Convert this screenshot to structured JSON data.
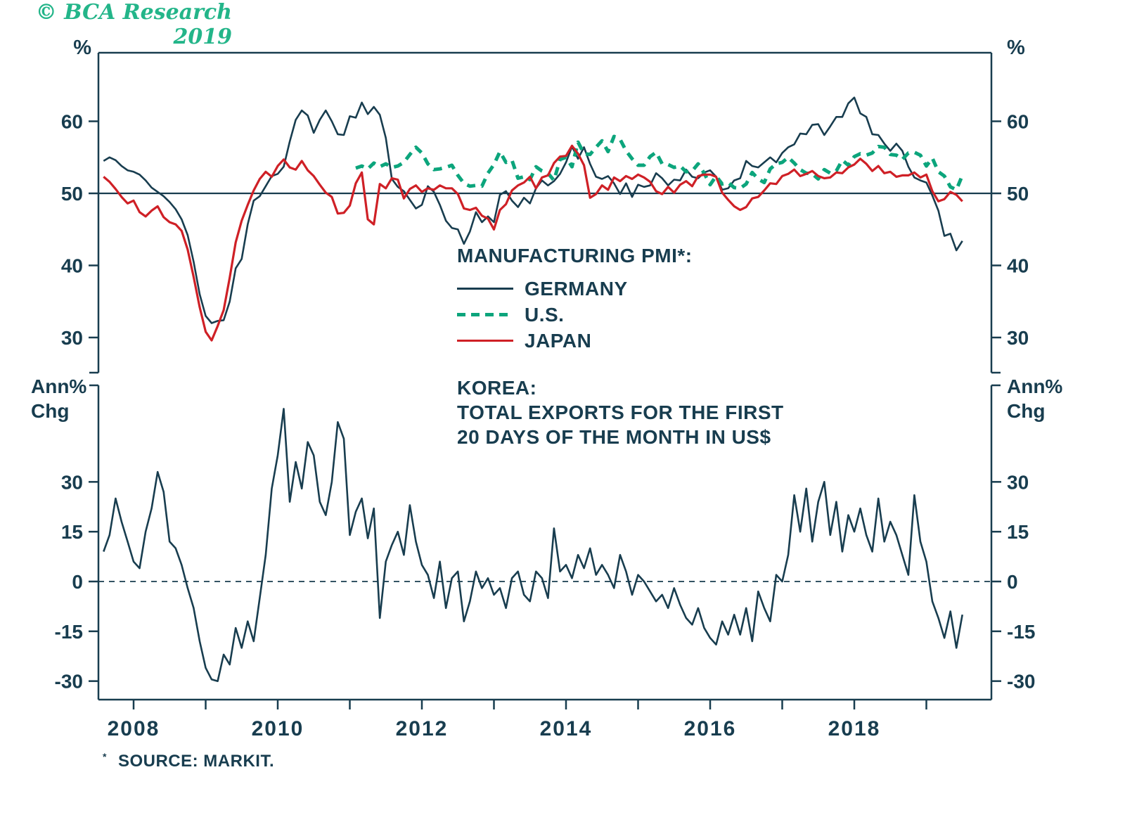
{
  "colors": {
    "axis": "#183d4f",
    "germany": "#183d4f",
    "us": "#0ca57c",
    "japan": "#cf2026",
    "korea": "#183d4f",
    "copyright_green": "#23b589"
  },
  "annotations": {
    "pct": "%",
    "ann_line1": "Ann%",
    "ann_line2": "Chg",
    "legend_title": "MANUFACTURING PMI*:",
    "legend_items": [
      "GERMANY",
      "U.S.",
      "JAPAN"
    ],
    "korea_label_lines": [
      "KOREA:",
      "TOTAL EXPORTS FOR THE FIRST",
      "20 DAYS OF THE MONTH IN US$"
    ],
    "footnote_mark": "*",
    "footnote": "SOURCE: MARKIT.",
    "copyright": "© BCA Research 2019"
  },
  "chart_data": [
    {
      "type": "line",
      "panel": "top",
      "title": "MANUFACTURING PMI*",
      "x_start": 2007.5833,
      "x_step": "monthly",
      "x_ticks": [
        2008,
        2009,
        2010,
        2011,
        2012,
        2013,
        2014,
        2015,
        2016,
        2017,
        2018,
        2019
      ],
      "x_tick_labels": [
        2008,
        2010,
        2012,
        2014,
        2016,
        2018
      ],
      "y_ticks": [
        60,
        50,
        40,
        30
      ],
      "ylim": [
        25,
        69
      ],
      "ref_line": 50,
      "y_axis_label": "%",
      "legend_position": "center",
      "series": [
        {
          "name": "GERMANY",
          "color": "#183d4f",
          "dash": false,
          "width": 2.6,
          "start_index": 0,
          "values": [
            54.5,
            55.0,
            54.6,
            53.8,
            53.2,
            53.0,
            52.6,
            51.8,
            50.8,
            50.2,
            49.6,
            48.8,
            47.8,
            46.4,
            44.2,
            40.5,
            36.0,
            33.0,
            32.0,
            32.3,
            32.4,
            35.0,
            39.6,
            40.9,
            45.7,
            49.0,
            49.6,
            51.0,
            52.4,
            52.7,
            53.7,
            57.2,
            60.2,
            61.5,
            60.8,
            58.4,
            60.2,
            61.5,
            60.0,
            58.2,
            58.1,
            60.7,
            60.5,
            62.6,
            61.0,
            62.0,
            60.9,
            57.7,
            52.0,
            50.9,
            50.3,
            49.1,
            47.9,
            48.4,
            51.0,
            50.2,
            48.4,
            46.2,
            45.2,
            45.0,
            43.0,
            44.7,
            47.4,
            46.0,
            46.8,
            46.0,
            49.8,
            50.3,
            49.0,
            48.1,
            49.4,
            48.6,
            50.7,
            51.8,
            51.1,
            51.7,
            52.7,
            54.3,
            56.5,
            54.8,
            56.4,
            54.1,
            52.3,
            52.0,
            52.4,
            51.4,
            49.9,
            51.4,
            49.5,
            51.2,
            50.9,
            51.1,
            52.8,
            52.1,
            51.1,
            51.9,
            51.8,
            53.3,
            52.3,
            52.1,
            52.9,
            53.2,
            52.3,
            50.5,
            50.7,
            51.8,
            52.1,
            54.5,
            53.8,
            53.6,
            54.3,
            55.0,
            54.3,
            55.6,
            56.4,
            56.8,
            58.3,
            58.2,
            59.5,
            59.6,
            58.1,
            59.3,
            60.6,
            60.6,
            62.5,
            63.3,
            61.1,
            60.6,
            58.2,
            58.1,
            56.9,
            55.9,
            56.9,
            55.9,
            53.7,
            52.2,
            51.8,
            51.5,
            49.7,
            47.6,
            44.1,
            44.4,
            42.1,
            43.4
          ]
        },
        {
          "name": "U.S.",
          "color": "#0ca57c",
          "dash": true,
          "width": 5,
          "start_index": 42,
          "values": [
            53.5,
            53.8,
            53.4,
            54.2,
            53.7,
            54.1,
            53.6,
            53.8,
            54.3,
            55.4,
            56.4,
            55.6,
            54.1,
            53.3,
            53.4,
            53.6,
            53.9,
            52.5,
            51.4,
            51.0,
            51.1,
            51.0,
            52.8,
            54.0,
            55.8,
            54.3,
            54.6,
            52.1,
            52.3,
            51.9,
            53.7,
            53.1,
            52.8,
            51.8,
            54.7,
            55.0,
            53.7,
            57.1,
            55.5,
            55.4,
            56.4,
            57.3,
            55.8,
            57.9,
            57.5,
            55.9,
            54.8,
            53.9,
            53.9,
            55.1,
            55.7,
            54.1,
            54.0,
            53.6,
            53.8,
            53.0,
            53.1,
            54.1,
            52.8,
            51.2,
            52.4,
            51.3,
            51.5,
            50.8,
            50.7,
            51.3,
            52.9,
            52.0,
            51.5,
            53.4,
            54.1,
            54.3,
            55.0,
            54.2,
            53.3,
            52.8,
            52.7,
            52.0,
            53.3,
            52.8,
            53.1,
            54.6,
            53.9,
            55.1,
            55.5,
            55.3,
            55.6,
            56.5,
            56.4,
            55.4,
            55.3,
            54.7,
            55.6,
            55.7,
            55.3,
            53.8,
            54.9,
            53.0,
            52.4,
            50.9,
            50.5,
            52.5
          ]
        },
        {
          "name": "JAPAN",
          "color": "#cf2026",
          "dash": false,
          "width": 3.2,
          "start_index": 0,
          "values": [
            52.3,
            51.6,
            50.6,
            49.5,
            48.6,
            49.0,
            47.4,
            46.8,
            47.6,
            48.2,
            46.7,
            46.0,
            45.7,
            44.8,
            42.2,
            38.4,
            34.2,
            30.8,
            29.6,
            31.6,
            33.8,
            38.3,
            43.2,
            46.2,
            48.4,
            50.4,
            52.0,
            53.0,
            52.3,
            53.8,
            54.7,
            53.6,
            53.3,
            54.5,
            53.2,
            52.4,
            51.2,
            50.1,
            49.5,
            47.2,
            47.3,
            48.3,
            51.4,
            52.9,
            46.4,
            45.7,
            51.3,
            50.7,
            52.1,
            51.9,
            49.3,
            50.6,
            51.1,
            50.2,
            50.7,
            50.5,
            51.1,
            50.7,
            50.7,
            49.9,
            47.9,
            47.7,
            48.0,
            46.9,
            46.5,
            45.0,
            47.7,
            48.5,
            50.4,
            51.1,
            51.5,
            52.3,
            50.7,
            52.2,
            52.5,
            54.2,
            55.1,
            55.2,
            56.6,
            55.5,
            53.9,
            49.4,
            49.9,
            51.1,
            50.5,
            52.2,
            51.7,
            52.4,
            52.0,
            52.6,
            52.2,
            51.6,
            50.3,
            49.9,
            50.9,
            50.1,
            51.2,
            51.7,
            51.0,
            52.4,
            52.6,
            52.6,
            52.3,
            50.1,
            49.1,
            48.2,
            47.7,
            48.1,
            49.3,
            49.5,
            50.4,
            51.4,
            51.3,
            52.4,
            52.7,
            53.3,
            52.4,
            52.7,
            53.1,
            52.4,
            52.1,
            52.2,
            52.9,
            52.8,
            53.6,
            54.0,
            54.8,
            54.1,
            53.1,
            53.8,
            52.8,
            53.0,
            52.3,
            52.5,
            52.5,
            52.9,
            52.2,
            52.6,
            50.3,
            48.9,
            49.2,
            50.2,
            49.8,
            48.9
          ]
        }
      ]
    },
    {
      "type": "line",
      "panel": "bottom",
      "title": "KOREA: TOTAL EXPORTS FOR THE FIRST 20 DAYS OF THE MONTH IN US$",
      "x_start": 2007.5833,
      "x_step": "monthly",
      "x_ticks": [
        2008,
        2009,
        2010,
        2011,
        2012,
        2013,
        2014,
        2015,
        2016,
        2017,
        2018,
        2019
      ],
      "x_tick_labels": [
        2008,
        2010,
        2012,
        2014,
        2016,
        2018
      ],
      "y_ticks": [
        30,
        15,
        0,
        -15,
        -30
      ],
      "ylim": [
        -36,
        59
      ],
      "ref_line": 0,
      "ref_line_style": "dashed",
      "y_axis_label": "Ann% Chg",
      "series": [
        {
          "name": "KOREA EXPORTS",
          "color": "#183d4f",
          "dash": false,
          "width": 2.6,
          "start_index": 0,
          "values": [
            9,
            14,
            25,
            18,
            12,
            6,
            4,
            15,
            22,
            33,
            27,
            12,
            10,
            5,
            -2,
            -8,
            -18,
            -26,
            -29.5,
            -30,
            -22,
            -25,
            -14,
            -20,
            -12,
            -18,
            -5,
            8,
            28,
            38,
            52,
            24,
            36,
            28,
            42,
            38,
            24,
            20,
            30,
            48,
            43,
            14,
            21,
            25,
            13,
            22,
            -11,
            6,
            11,
            15,
            8,
            23,
            12,
            5,
            2,
            -5,
            6,
            -8,
            1,
            3,
            -12,
            -6,
            3,
            -2,
            1,
            -4,
            -2,
            -8,
            1,
            3,
            -4,
            -6,
            3,
            1,
            -5,
            16,
            3,
            5,
            1,
            8,
            4,
            10,
            2,
            5,
            2,
            -2,
            8,
            3,
            -4,
            2,
            0,
            -3,
            -6,
            -4,
            -8,
            -2,
            -7,
            -11,
            -13,
            -8,
            -14,
            -17,
            -19,
            -12,
            -16,
            -10,
            -16,
            -8,
            -18,
            -3,
            -8,
            -12,
            2,
            0,
            8,
            26,
            15,
            28,
            12,
            24,
            30,
            14,
            24,
            9,
            20,
            15,
            22,
            14,
            9,
            25,
            12,
            18,
            14,
            8,
            2,
            26,
            12,
            6,
            -6,
            -11,
            -17,
            -9,
            -20,
            -10
          ]
        }
      ]
    }
  ]
}
